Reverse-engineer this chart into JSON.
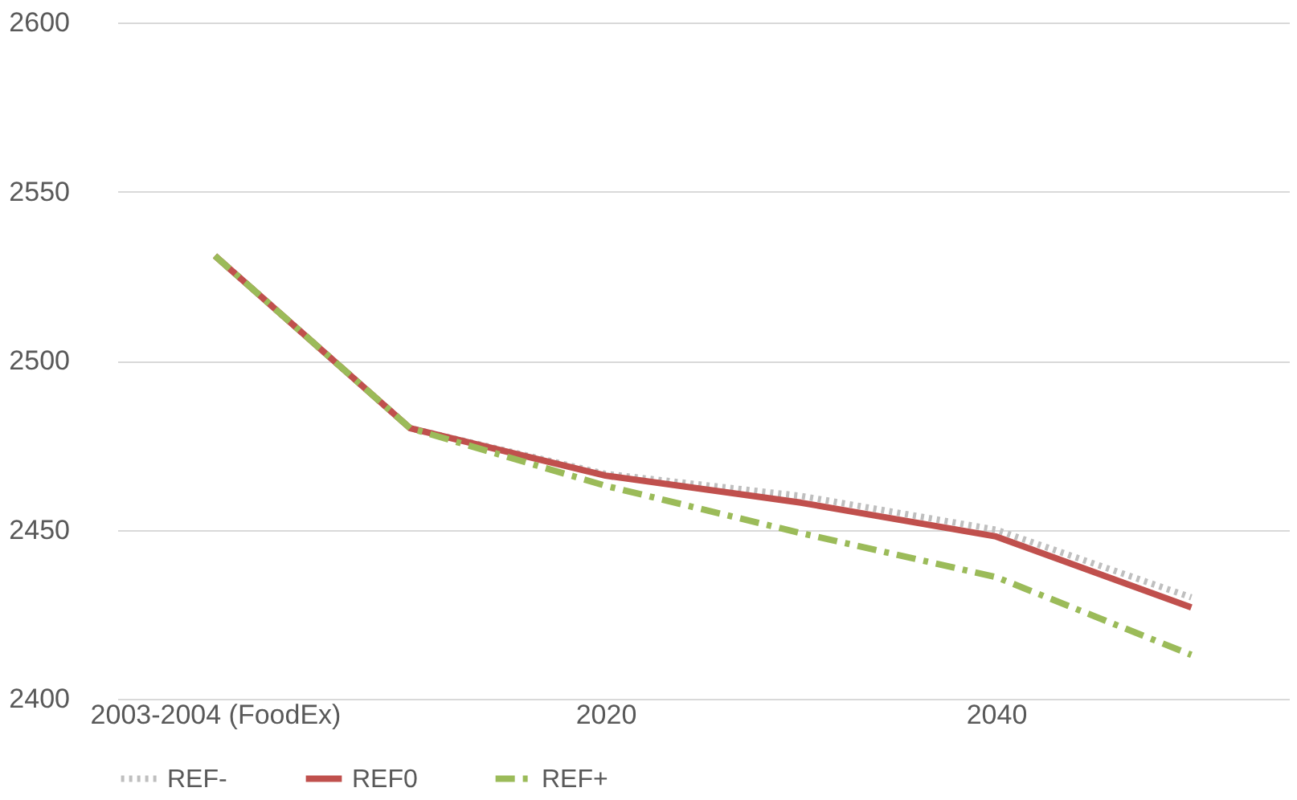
{
  "chart_data": {
    "type": "line",
    "categories": [
      "2003-2004 (FoodEx)",
      null,
      "2020",
      null,
      "2040",
      null
    ],
    "series": [
      {
        "name": "REF-",
        "color": "#bfbfbf",
        "line_style": "dotted",
        "values": [
          2531,
          2480,
          2466.5,
          2460,
          2450,
          2430
        ]
      },
      {
        "name": "REF0",
        "color": "#c0504d",
        "line_style": "solid",
        "values": [
          2531,
          2480,
          2466,
          2458,
          2448,
          2427
        ]
      },
      {
        "name": "REF+",
        "color": "#9bbb59",
        "line_style": "dashed",
        "values": [
          2531,
          2480,
          2463,
          2449,
          2436,
          2413
        ]
      }
    ],
    "ylim": [
      2400,
      2600
    ],
    "yticks": [
      2400,
      2450,
      2500,
      2550,
      2600
    ],
    "grid": "y",
    "legend": "bottom",
    "marker": "none"
  }
}
